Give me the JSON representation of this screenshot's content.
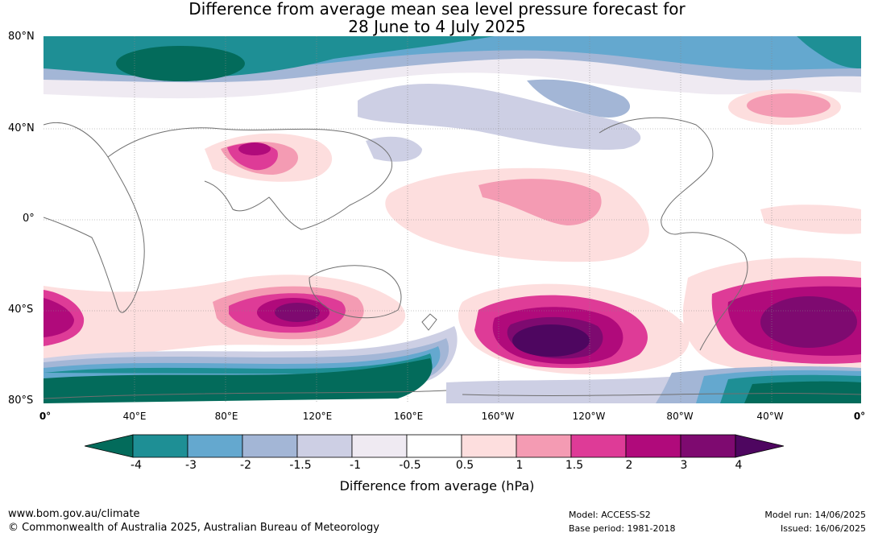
{
  "title": {
    "line1": "Difference from average mean sea level pressure forecast for",
    "line2": "28 June to 4 July 2025"
  },
  "axes": {
    "y_labels": [
      "80°N",
      "40°N",
      "0°",
      "40°S",
      "80°S"
    ],
    "x_labels": [
      "0°",
      "40°E",
      "80°E",
      "120°E",
      "160°E",
      "160°W",
      "120°W",
      "80°W",
      "40°W",
      "0°"
    ]
  },
  "colorbar": {
    "ticks": [
      "-4",
      "-3",
      "-2",
      "-1.5",
      "-1",
      "-0.5",
      "0.5",
      "1",
      "1.5",
      "2",
      "3",
      "4"
    ],
    "label": "Difference from average (hPa)",
    "colors": [
      "#036b5b",
      "#1e8f95",
      "#64a8cf",
      "#a3b6d6",
      "#cdcfe4",
      "#efeaf2",
      "#ffffff",
      "#fddede",
      "#f49bb3",
      "#de3b97",
      "#b00a7b",
      "#7e0a70",
      "#4e0660"
    ]
  },
  "footer": {
    "url": "www.bom.gov.au/climate",
    "copyright": "© Commonwealth of Australia 2025, Australian Bureau of Meteorology",
    "model": "Model: ACCESS-S2",
    "base_period": "Base period: 1981-2018",
    "model_run": "Model run: 14/06/2025",
    "issued": "Issued: 16/06/2025"
  }
}
